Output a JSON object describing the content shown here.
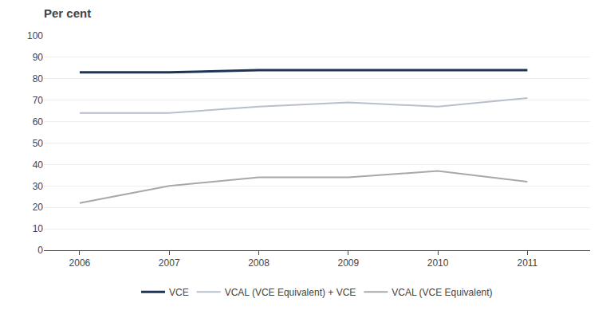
{
  "chart_data": {
    "type": "line",
    "title": "Per cent",
    "x": [
      2006,
      2007,
      2008,
      2009,
      2010,
      2011
    ],
    "series": [
      {
        "name": "VCE",
        "color": "#1c3557",
        "values": [
          83,
          83,
          84,
          84,
          84,
          84
        ]
      },
      {
        "name": "VCAL (VCE Equivalent) + VCE",
        "color": "#b8bfcc",
        "values": [
          64,
          64,
          67,
          69,
          67,
          71
        ]
      },
      {
        "name": "VCAL (VCE Equivalent)",
        "color": "#a8a8a8",
        "values": [
          22,
          30,
          34,
          34,
          37,
          32
        ]
      }
    ],
    "xlim": [
      2005.6,
      2011.7
    ],
    "xticks": [
      2006,
      2007,
      2008,
      2009,
      2010,
      2011
    ],
    "ylim": [
      0,
      100
    ],
    "yticks": [
      0,
      10,
      20,
      30,
      40,
      50,
      60,
      70,
      80,
      90,
      100
    ],
    "grid": "y",
    "legend": "bottom"
  }
}
